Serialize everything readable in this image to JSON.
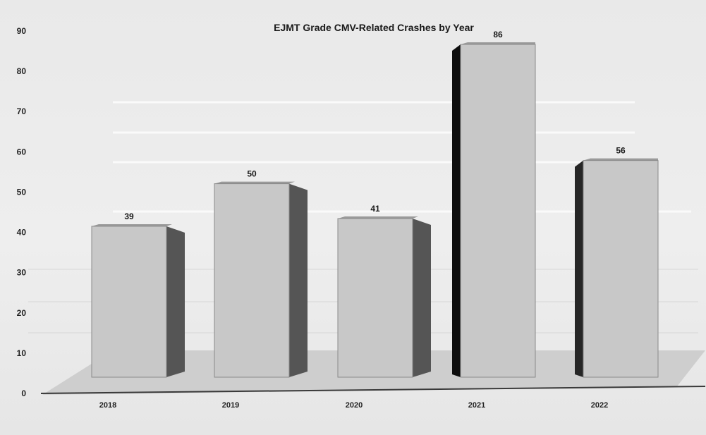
{
  "chart_data": {
    "type": "bar",
    "title": "EJMT Grade CMV-Related Crashes by Year",
    "xlabel": "",
    "ylabel": "",
    "categories": [
      "2018",
      "2019",
      "2020",
      "2021",
      "2022"
    ],
    "series": [
      {
        "values": [
          39,
          50,
          41,
          86,
          56
        ]
      }
    ],
    "data_labels": [
      "39",
      "50",
      "41",
      "86",
      "56"
    ],
    "ylim": [
      0,
      90
    ],
    "yticks": [
      "0",
      "10",
      "20",
      "30",
      "40",
      "50",
      "60",
      "70",
      "80",
      "90"
    ],
    "style": "3d-column",
    "legend": "none",
    "grid": false,
    "colors": {
      "bar_front": "#c8c8c8",
      "bar_side": "#555555",
      "floor": "#b4b4b4"
    }
  }
}
